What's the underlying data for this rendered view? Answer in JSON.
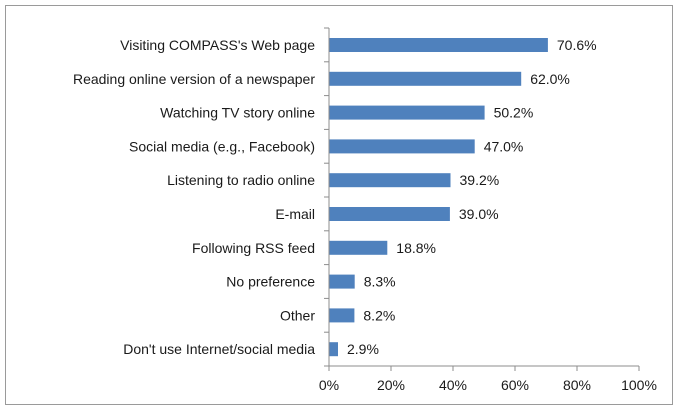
{
  "chart_data": {
    "type": "bar",
    "orientation": "horizontal",
    "title": "",
    "xlabel": "",
    "ylabel": "",
    "categories": [
      "Visiting COMPASS's Web page",
      "Reading online version of a newspaper",
      "Watching TV story online",
      "Social media (e.g., Facebook)",
      "Listening to radio online",
      "E-mail",
      "Following RSS feed",
      "No preference",
      "Other",
      "Don't use Internet/social media"
    ],
    "values": [
      70.6,
      62.0,
      50.2,
      47.0,
      39.2,
      39.0,
      18.8,
      8.3,
      8.2,
      2.9
    ],
    "value_labels": [
      "70.6%",
      "62.0%",
      "50.2%",
      "47.0%",
      "39.2%",
      "39.0%",
      "18.8%",
      "8.3%",
      "8.2%",
      "2.9%"
    ],
    "xlim": [
      0,
      100
    ],
    "x_ticks": [
      0,
      20,
      40,
      60,
      80,
      100
    ],
    "x_tick_labels": [
      "0%",
      "20%",
      "40%",
      "60%",
      "80%",
      "100%"
    ],
    "grid": false,
    "legend": "none",
    "bar_color": "#4f81bd",
    "axis_color": "#8c8c8c"
  }
}
